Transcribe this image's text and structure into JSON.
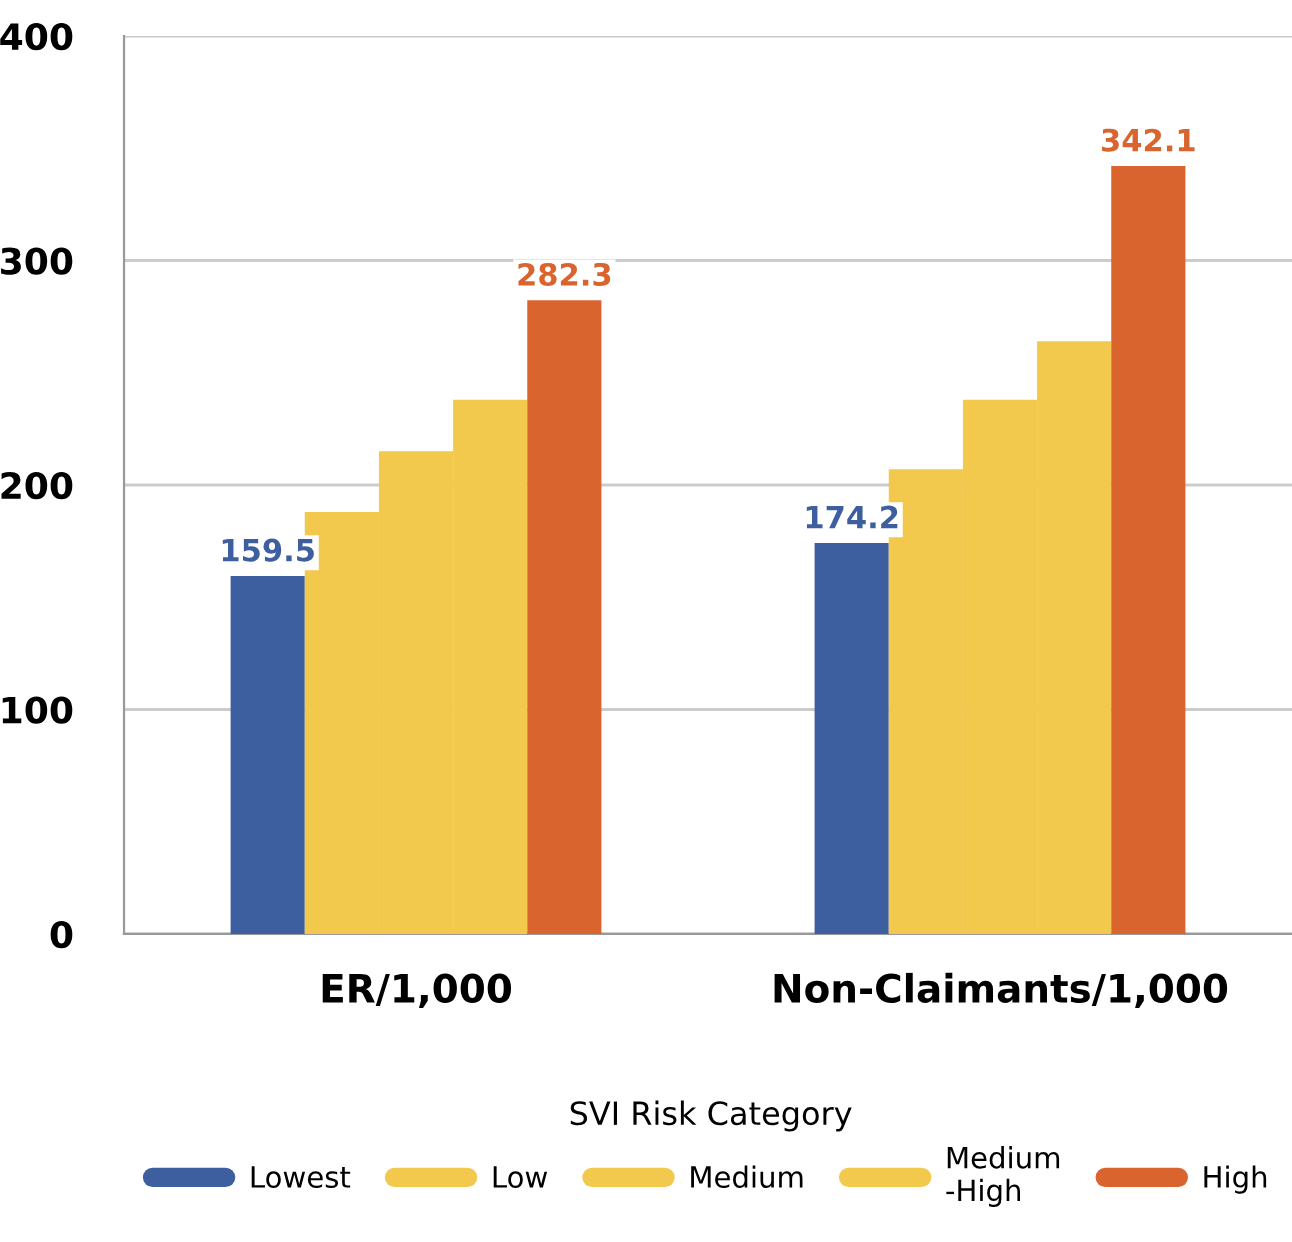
{
  "chart_data": {
    "type": "bar",
    "categories": [
      "ER/1,000",
      "Non-Claimants/1,000"
    ],
    "series": [
      {
        "name": "Lowest",
        "color": "#3d5fa0",
        "values": [
          159.5,
          174.2
        ],
        "value_labels": [
          "159.5",
          "174.2"
        ]
      },
      {
        "name": "Low",
        "color": "#f2c94c",
        "values": [
          188,
          207
        ],
        "value_labels": [
          null,
          null
        ]
      },
      {
        "name": "Medium",
        "color": "#f2c94c",
        "values": [
          215,
          238
        ],
        "value_labels": [
          null,
          null
        ]
      },
      {
        "name": "Medium\n-High",
        "color": "#f2c94c",
        "values": [
          238,
          264
        ],
        "value_labels": [
          null,
          null
        ]
      },
      {
        "name": "High",
        "color": "#d9642e",
        "values": [
          282.3,
          342.1
        ],
        "value_labels": [
          "282.3",
          "342.1"
        ]
      }
    ],
    "ylim": [
      0,
      400
    ],
    "yticks": [
      0,
      100,
      200,
      300,
      400
    ],
    "grid": "y",
    "legend": "bottom",
    "legend_title": "SVI Risk Category"
  }
}
